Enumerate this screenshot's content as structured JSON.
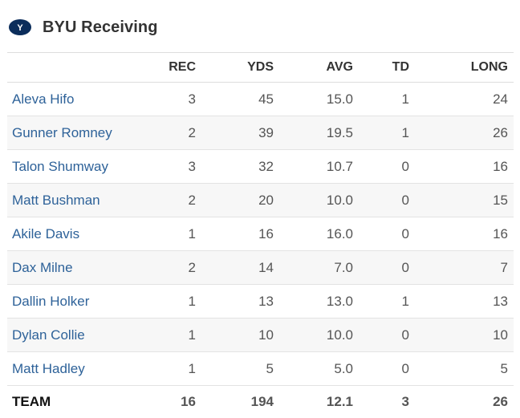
{
  "header": {
    "title": "BYU Receiving",
    "logo_icon": "byu-logo-icon"
  },
  "colors": {
    "brand": "#002e5d",
    "link": "#2e6299",
    "row_alt": "#f7f7f7"
  },
  "table": {
    "columns": [
      "",
      "REC",
      "YDS",
      "AVG",
      "TD",
      "LONG"
    ],
    "rows": [
      {
        "name": "Aleva Hifo",
        "rec": "3",
        "yds": "45",
        "avg": "15.0",
        "td": "1",
        "long": "24"
      },
      {
        "name": "Gunner Romney",
        "rec": "2",
        "yds": "39",
        "avg": "19.5",
        "td": "1",
        "long": "26"
      },
      {
        "name": "Talon Shumway",
        "rec": "3",
        "yds": "32",
        "avg": "10.7",
        "td": "0",
        "long": "16"
      },
      {
        "name": "Matt Bushman",
        "rec": "2",
        "yds": "20",
        "avg": "10.0",
        "td": "0",
        "long": "15"
      },
      {
        "name": "Akile Davis",
        "rec": "1",
        "yds": "16",
        "avg": "16.0",
        "td": "0",
        "long": "16"
      },
      {
        "name": "Dax Milne",
        "rec": "2",
        "yds": "14",
        "avg": "7.0",
        "td": "0",
        "long": "7"
      },
      {
        "name": "Dallin Holker",
        "rec": "1",
        "yds": "13",
        "avg": "13.0",
        "td": "1",
        "long": "13"
      },
      {
        "name": "Dylan Collie",
        "rec": "1",
        "yds": "10",
        "avg": "10.0",
        "td": "0",
        "long": "10"
      },
      {
        "name": "Matt Hadley",
        "rec": "1",
        "yds": "5",
        "avg": "5.0",
        "td": "0",
        "long": "5"
      }
    ],
    "total": {
      "name": "TEAM",
      "rec": "16",
      "yds": "194",
      "avg": "12.1",
      "td": "3",
      "long": "26"
    }
  }
}
